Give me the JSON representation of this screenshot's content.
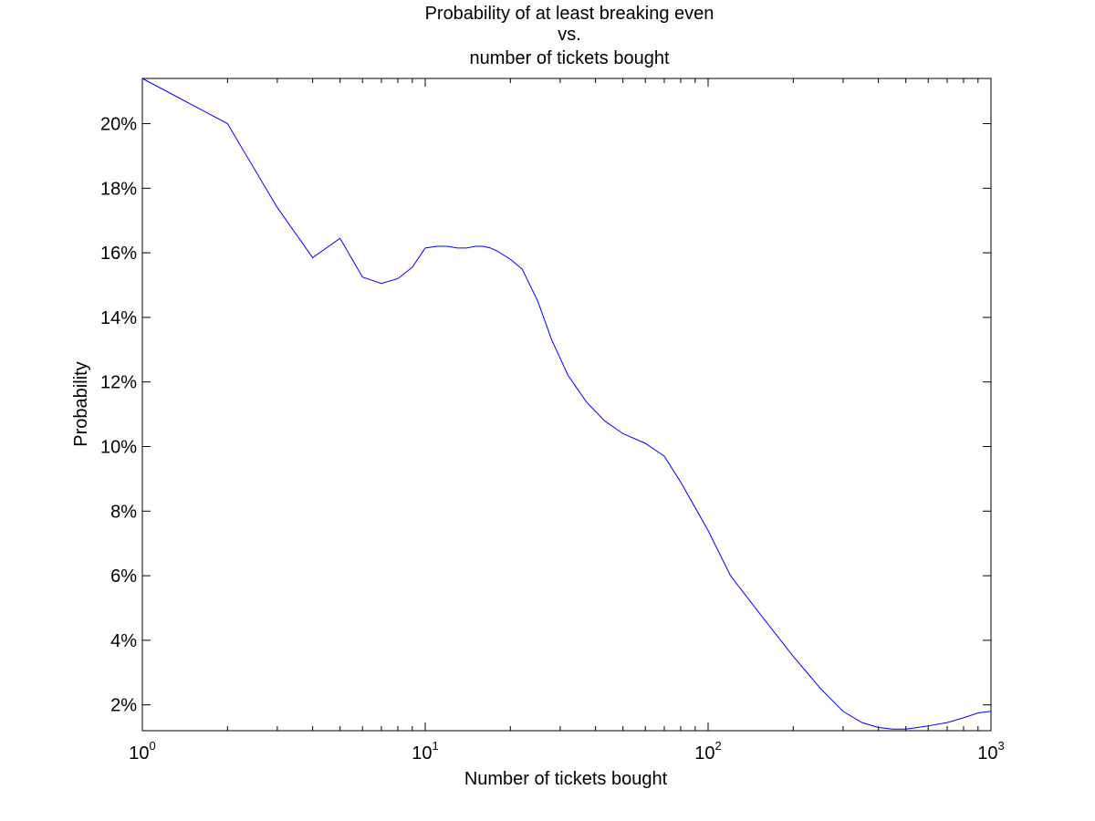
{
  "chart_data": {
    "type": "line",
    "title_lines": [
      "Probability of at least breaking even",
      "vs.",
      "number of tickets bought"
    ],
    "xlabel": "Number of tickets bought",
    "ylabel": "Probability",
    "x_scale": "log",
    "xlim": [
      1,
      1000
    ],
    "ylim": [
      1.2,
      21.4
    ],
    "grid": false,
    "x_ticks": [
      {
        "value": 1,
        "base": "10",
        "exp": "0"
      },
      {
        "value": 10,
        "base": "10",
        "exp": "1"
      },
      {
        "value": 100,
        "base": "10",
        "exp": "2"
      },
      {
        "value": 1000,
        "base": "10",
        "exp": "3"
      }
    ],
    "y_ticks": [
      {
        "value": 2,
        "label": "2%"
      },
      {
        "value": 4,
        "label": "4%"
      },
      {
        "value": 6,
        "label": "6%"
      },
      {
        "value": 8,
        "label": "8%"
      },
      {
        "value": 10,
        "label": "10%"
      },
      {
        "value": 12,
        "label": "12%"
      },
      {
        "value": 14,
        "label": "14%"
      },
      {
        "value": 16,
        "label": "16%"
      },
      {
        "value": 18,
        "label": "18%"
      },
      {
        "value": 20,
        "label": "20%"
      }
    ],
    "series": [
      {
        "color": "#0000ff",
        "points": [
          [
            1,
            21.4
          ],
          [
            2,
            20.0
          ],
          [
            3,
            17.4
          ],
          [
            4,
            15.85
          ],
          [
            5,
            16.45
          ],
          [
            6,
            15.25
          ],
          [
            7,
            15.05
          ],
          [
            8,
            15.2
          ],
          [
            9,
            15.55
          ],
          [
            10,
            16.15
          ],
          [
            11,
            16.2
          ],
          [
            12,
            16.2
          ],
          [
            13,
            16.15
          ],
          [
            14,
            16.15
          ],
          [
            15,
            16.2
          ],
          [
            16,
            16.2
          ],
          [
            17,
            16.15
          ],
          [
            18,
            16.05
          ],
          [
            20,
            15.8
          ],
          [
            22,
            15.5
          ],
          [
            25,
            14.5
          ],
          [
            28,
            13.3
          ],
          [
            32,
            12.2
          ],
          [
            37,
            11.4
          ],
          [
            43,
            10.8
          ],
          [
            50,
            10.4
          ],
          [
            60,
            10.1
          ],
          [
            70,
            9.7
          ],
          [
            80,
            8.9
          ],
          [
            100,
            7.4
          ],
          [
            120,
            6.0
          ],
          [
            150,
            4.9
          ],
          [
            200,
            3.5
          ],
          [
            250,
            2.5
          ],
          [
            300,
            1.8
          ],
          [
            350,
            1.45
          ],
          [
            400,
            1.3
          ],
          [
            450,
            1.25
          ],
          [
            500,
            1.25
          ],
          [
            550,
            1.3
          ],
          [
            600,
            1.35
          ],
          [
            700,
            1.45
          ],
          [
            800,
            1.6
          ],
          [
            900,
            1.75
          ],
          [
            1000,
            1.8
          ]
        ]
      }
    ]
  }
}
